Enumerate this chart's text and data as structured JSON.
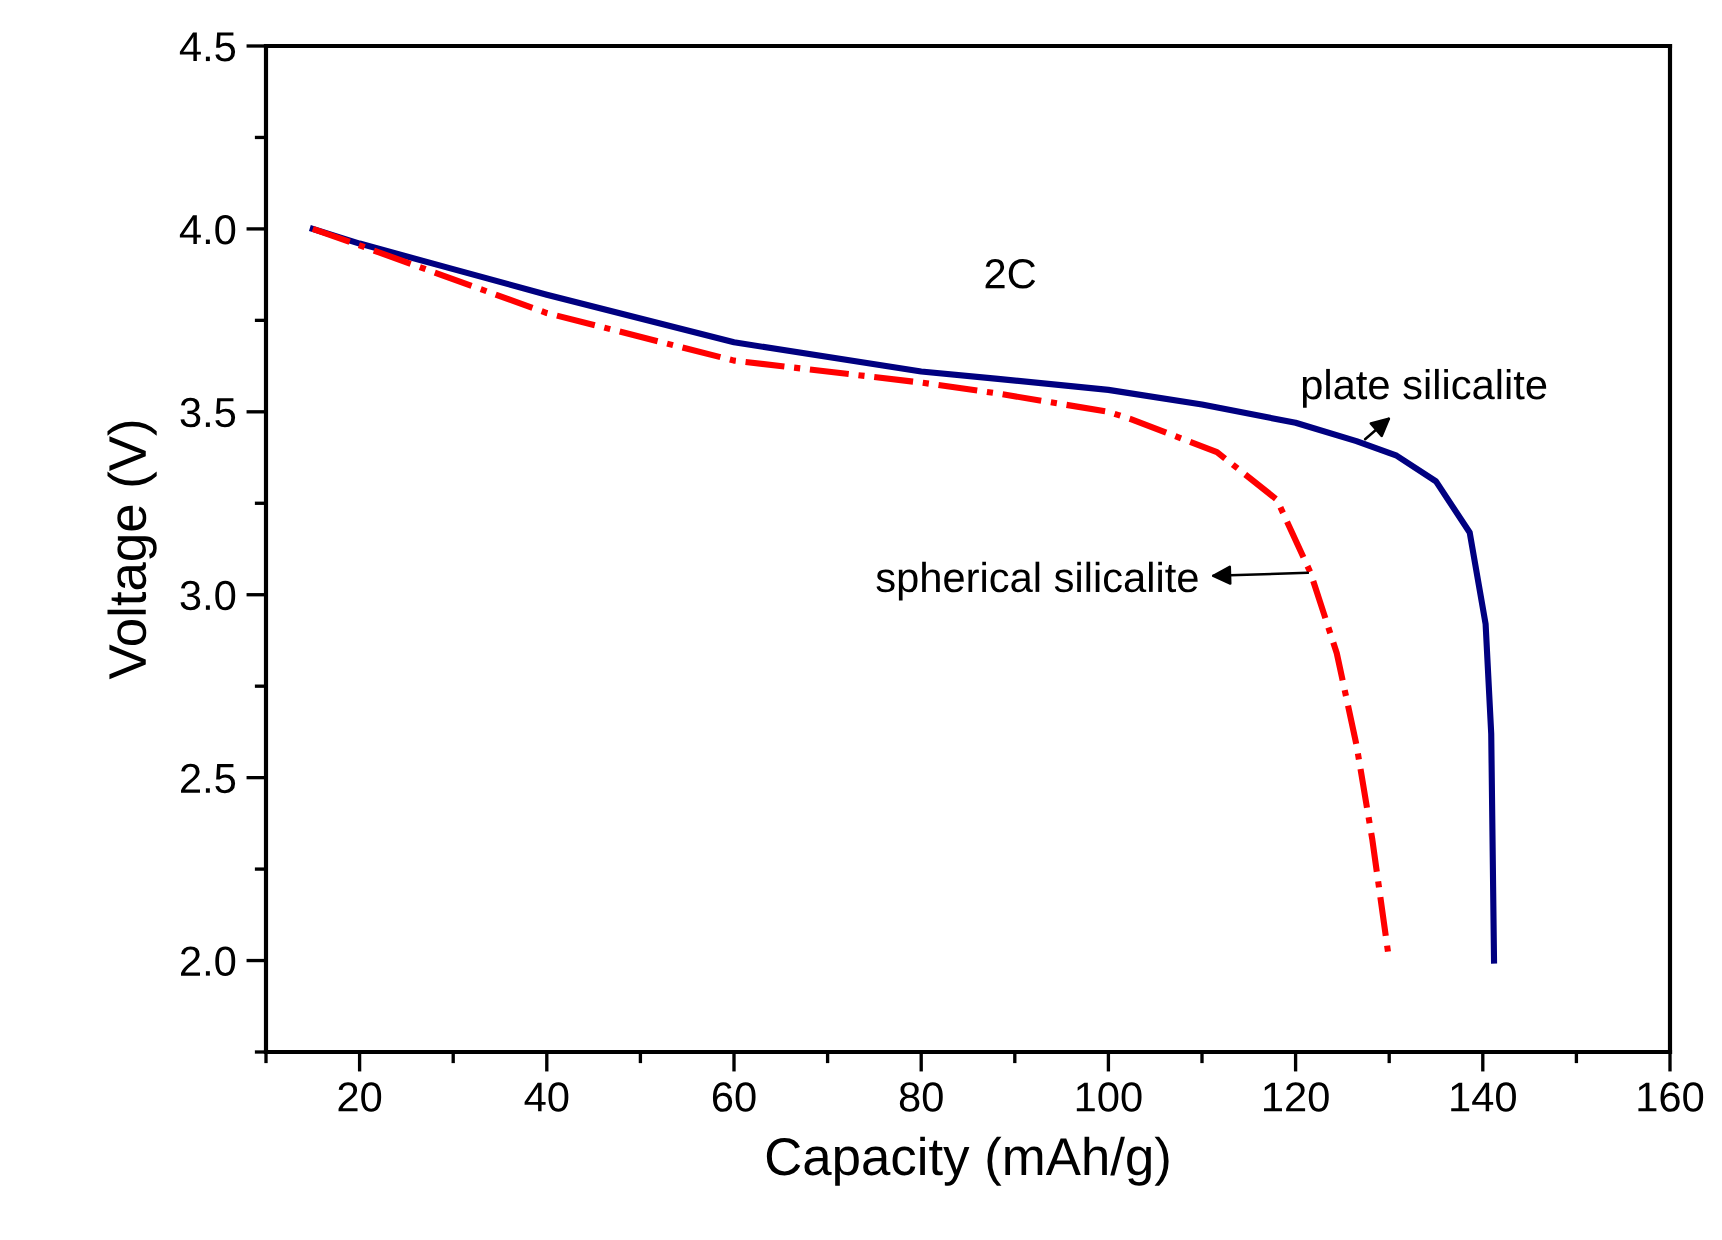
{
  "chart_data": {
    "type": "line",
    "xlabel": "Capacity (mAh/g)",
    "ylabel": "Voltage (V)",
    "xlim": [
      10,
      160
    ],
    "xticks": [
      20,
      40,
      60,
      80,
      100,
      120,
      140,
      160
    ],
    "ylim": [
      1.75,
      4.5
    ],
    "yticks": [
      {
        "value": 2.0,
        "label": "2.0"
      },
      {
        "value": 2.5,
        "label": "2.5"
      },
      {
        "value": 3.0,
        "label": "3.0"
      },
      {
        "value": 3.5,
        "label": "3.5"
      },
      {
        "value": 4.0,
        "label": "4.0"
      },
      {
        "value": 4.5,
        "label": "4.5"
      }
    ],
    "grid": false,
    "legend": false,
    "marker": "none",
    "series": [
      {
        "color": "#000080",
        "line_style": "solid",
        "x": [
          15,
          20,
          30,
          40,
          60,
          80,
          88.2,
          100,
          110,
          120,
          126.5,
          130.8,
          135,
          138.6,
          140.3,
          140.9,
          141.2
        ],
        "values": [
          4.0,
          3.96,
          3.89,
          3.82,
          3.69,
          3.61,
          3.59,
          3.56,
          3.52,
          3.47,
          3.42,
          3.38,
          3.31,
          3.17,
          2.92,
          2.62,
          2.0
        ]
      },
      {
        "color": "#ff0000",
        "line_style": "dashdot",
        "x": [
          15,
          20,
          40,
          60,
          80,
          88.2,
          100,
          102.4,
          111.6,
          118,
          121.6,
          124.4,
          126.5,
          128.2,
          130
        ],
        "values": [
          4.0,
          3.955,
          3.77,
          3.64,
          3.58,
          3.55,
          3.5,
          3.48,
          3.39,
          3.26,
          3.06,
          2.84,
          2.59,
          2.33,
          2.0
        ]
      }
    ],
    "annotations": [
      "2C",
      {
        "text": "plate silicalite",
        "x": 127.2,
        "y": 3.42
      },
      {
        "text": "spherical silicalite",
        "x": 121.6,
        "y": 3.06
      }
    ]
  }
}
